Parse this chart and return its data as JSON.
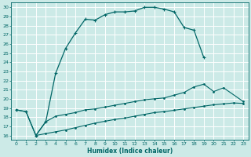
{
  "xlabel": "Humidex (Indice chaleur)",
  "bg_color": "#cceae7",
  "grid_color": "#ffffff",
  "line_color": "#006666",
  "xlim": [
    -0.5,
    23.5
  ],
  "ylim": [
    15.5,
    30.5
  ],
  "xticks": [
    0,
    1,
    2,
    3,
    4,
    5,
    6,
    7,
    8,
    9,
    10,
    11,
    12,
    13,
    14,
    15,
    16,
    17,
    18,
    19,
    20,
    21,
    22,
    23
  ],
  "yticks": [
    16,
    17,
    18,
    19,
    20,
    21,
    22,
    23,
    24,
    25,
    26,
    27,
    28,
    29,
    30
  ],
  "curve1_x": [
    0,
    1,
    2,
    3,
    4,
    5,
    6,
    7,
    8,
    9,
    10,
    11,
    12,
    13,
    14,
    15,
    16,
    17,
    18,
    19
  ],
  "curve1_y": [
    18.8,
    18.6,
    16.0,
    17.5,
    22.8,
    25.5,
    27.2,
    28.7,
    28.6,
    29.2,
    29.5,
    29.5,
    29.6,
    30.0,
    30.0,
    29.8,
    29.5,
    27.8,
    27.5,
    24.5
  ],
  "curve2_x": [
    0,
    1,
    2,
    3,
    4,
    5,
    6,
    7,
    8,
    9,
    10,
    11,
    12,
    13,
    14,
    15,
    16,
    17,
    18,
    19,
    20,
    21,
    23
  ],
  "curve2_y": [
    18.8,
    18.6,
    16.0,
    17.5,
    18.1,
    18.3,
    18.5,
    18.8,
    18.9,
    19.1,
    19.3,
    19.5,
    19.7,
    19.9,
    20.0,
    20.1,
    20.4,
    20.7,
    21.3,
    21.6,
    20.8,
    21.2,
    19.7
  ],
  "curve3_x": [
    2,
    3,
    4,
    5,
    6,
    7,
    8,
    9,
    10,
    11,
    12,
    13,
    14,
    15,
    16,
    17,
    18,
    19,
    20,
    21,
    22,
    23
  ],
  "curve3_y": [
    16.0,
    16.2,
    16.4,
    16.6,
    16.85,
    17.1,
    17.35,
    17.55,
    17.75,
    17.9,
    18.1,
    18.3,
    18.5,
    18.6,
    18.75,
    18.9,
    19.05,
    19.2,
    19.35,
    19.45,
    19.55,
    19.5
  ]
}
